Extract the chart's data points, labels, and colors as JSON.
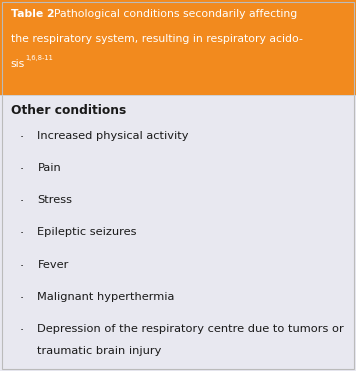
{
  "header_bg": "#F28A1E",
  "header_text_color": "#FFFFFF",
  "body_bg": "#E8E8F0",
  "section_header": "Other conditions",
  "items": [
    "Increased physical activity",
    "Pain",
    "Stress",
    "Epileptic seizures",
    "Fever",
    "Malignant hyperthermia",
    "Depression of the respiratory centre due to tumors or\ntraumatic brain injury"
  ],
  "body_text_color": "#1a1a1a",
  "font_size_title": 7.8,
  "font_size_body": 8.2,
  "font_size_section": 8.8,
  "fig_width": 3.56,
  "fig_height": 3.71,
  "header_line1": ". Pathological conditions secondarily affecting",
  "header_line2": "the respiratory system, resulting in respiratory acido-",
  "header_line3": "sis",
  "header_superscript": "1,6,8-11",
  "border_color": "#BBBBBB"
}
